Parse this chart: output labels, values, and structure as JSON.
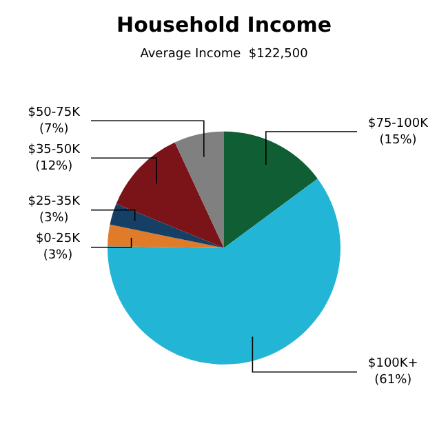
{
  "chart_data": {
    "type": "pie",
    "title": "Household Income",
    "subtitle": "Average Income  $122,500",
    "categories": [
      "$75-100K",
      "$100K+",
      "$0-25K",
      "$25-35K",
      "$35-50K",
      "$50-75K"
    ],
    "values": [
      15,
      61,
      3,
      3,
      12,
      7
    ],
    "value_labels": [
      "(15%)",
      "(61%)",
      "(3%)",
      "(3%)",
      "(12%)",
      "(7%)"
    ],
    "colors": [
      "#0f5e34",
      "#22b5d6",
      "#e07b2a",
      "#163f66",
      "#7a1419",
      "#808080"
    ],
    "legend": false
  }
}
